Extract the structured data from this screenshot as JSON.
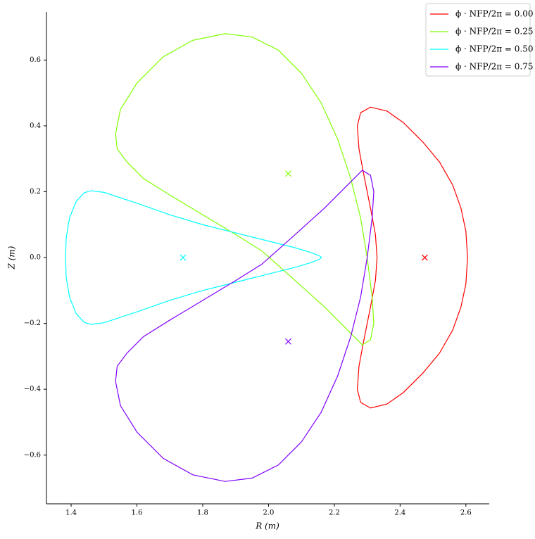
{
  "chart_data": {
    "type": "line",
    "xlabel": "R (m)",
    "ylabel": "Z (m)",
    "xlim": [
      1.325,
      2.671
    ],
    "ylim": [
      -0.748,
      0.746
    ],
    "xticks": [
      1.4,
      1.6,
      1.8,
      {
        "value": 2.0,
        "label": "2.0"
      },
      2.2,
      2.4,
      2.6
    ],
    "yticks": [
      {
        "value": -0.6,
        "label": "−0.6"
      },
      {
        "value": -0.4,
        "label": "−0.4"
      },
      {
        "value": -0.2,
        "label": "−0.2"
      },
      {
        "value": 0,
        "label": "0.0"
      },
      0.2,
      0.4,
      0.6
    ],
    "legend": "upper right",
    "series": [
      {
        "name": "ϕ · NFP/2π = 0.00",
        "color": "#ff0000",
        "axis": [
          2.475,
          0
        ],
        "x": [
          2.605,
          2.6,
          2.585,
          2.56,
          2.52,
          2.47,
          2.41,
          2.36,
          2.31,
          2.28,
          2.27,
          2.275,
          2.29,
          2.31,
          2.325,
          2.33,
          2.325,
          2.31,
          2.29,
          2.275,
          2.27,
          2.28,
          2.31,
          2.36,
          2.41,
          2.47,
          2.52,
          2.56,
          2.585,
          2.6,
          2.605
        ],
        "values": [
          0,
          0.08,
          0.15,
          0.22,
          0.29,
          0.35,
          0.41,
          0.445,
          0.457,
          0.44,
          0.4,
          0.33,
          0.25,
          0.15,
          0.07,
          0,
          -0.07,
          -0.15,
          -0.25,
          -0.33,
          -0.4,
          -0.44,
          -0.457,
          -0.445,
          -0.41,
          -0.35,
          -0.29,
          -0.22,
          -0.15,
          -0.08,
          0
        ]
      },
      {
        "name": "ϕ · NFP/2π = 0.25",
        "color": "#80ff00",
        "axis": [
          2.06,
          0.255
        ],
        "x": [
          1.535,
          1.55,
          1.6,
          1.68,
          1.77,
          1.868,
          1.95,
          2.03,
          2.1,
          2.16,
          2.21,
          2.25,
          2.28,
          2.3,
          2.315,
          2.32,
          2.31,
          2.285,
          2.25,
          2.17,
          2.07,
          1.98,
          1.9,
          1.8,
          1.7,
          1.62,
          1.57,
          1.54,
          1.535
        ],
        "values": [
          0.376,
          0.45,
          0.53,
          0.61,
          0.66,
          0.68,
          0.67,
          0.63,
          0.56,
          0.47,
          0.36,
          0.24,
          0.12,
          0,
          -0.12,
          -0.2,
          -0.25,
          -0.265,
          -0.23,
          -0.15,
          -0.06,
          0.02,
          0.07,
          0.13,
          0.19,
          0.24,
          0.29,
          0.33,
          0.376
        ]
      },
      {
        "name": "ϕ · NFP/2π = 0.50",
        "color": "#00ffff",
        "axis": [
          1.74,
          0
        ],
        "x": [
          1.383,
          1.385,
          1.395,
          1.415,
          1.44,
          1.46,
          1.5,
          1.6,
          1.7,
          1.8,
          1.9,
          2.0,
          2.08,
          2.13,
          2.155,
          2.161,
          2.155,
          2.13,
          2.08,
          2.0,
          1.9,
          1.8,
          1.7,
          1.6,
          1.5,
          1.46,
          1.44,
          1.415,
          1.395,
          1.385,
          1.383
        ],
        "values": [
          0,
          0.06,
          0.12,
          0.17,
          0.197,
          0.203,
          0.198,
          0.165,
          0.13,
          0.1,
          0.075,
          0.05,
          0.03,
          0.015,
          0.005,
          0,
          -0.005,
          -0.015,
          -0.03,
          -0.05,
          -0.075,
          -0.1,
          -0.13,
          -0.165,
          -0.198,
          -0.203,
          -0.197,
          -0.17,
          -0.12,
          -0.06,
          0
        ]
      },
      {
        "name": "ϕ · NFP/2π = 0.75",
        "color": "#8000ff",
        "axis": [
          2.06,
          -0.255
        ],
        "x": [
          1.535,
          1.55,
          1.6,
          1.68,
          1.77,
          1.868,
          1.95,
          2.03,
          2.1,
          2.16,
          2.21,
          2.25,
          2.28,
          2.3,
          2.315,
          2.32,
          2.31,
          2.285,
          2.25,
          2.17,
          2.07,
          1.98,
          1.9,
          1.8,
          1.7,
          1.62,
          1.57,
          1.54,
          1.535
        ],
        "values": [
          -0.376,
          -0.45,
          -0.53,
          -0.61,
          -0.66,
          -0.68,
          -0.67,
          -0.63,
          -0.56,
          -0.47,
          -0.36,
          -0.24,
          -0.12,
          0,
          0.12,
          0.2,
          0.25,
          0.265,
          0.23,
          0.15,
          0.06,
          -0.02,
          -0.07,
          -0.13,
          -0.19,
          -0.24,
          -0.29,
          -0.33,
          -0.376
        ]
      }
    ]
  }
}
